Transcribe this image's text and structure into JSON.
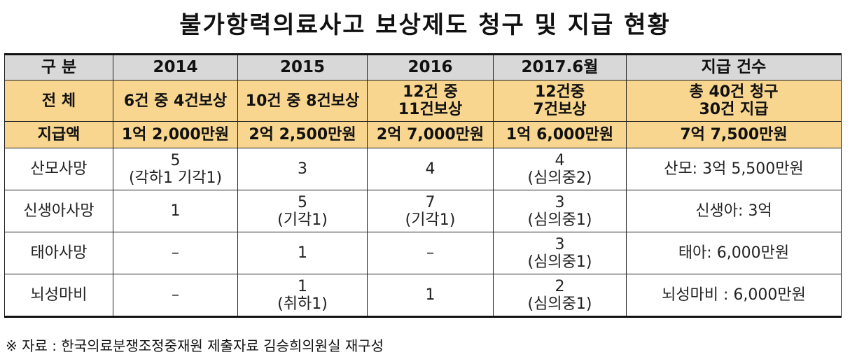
{
  "title": "불가항력의료사고 보상제도 청구 및 지급 현황",
  "header": [
    "구  분",
    "2014",
    "2015",
    "2016",
    "2017.6월",
    "지급 건수"
  ],
  "rows": [
    {
      "label": "전  체",
      "cells": [
        [
          "6건 중 4건보상"
        ],
        [
          "10건 중 8건보상"
        ],
        [
          "12건 중",
          "11건보상"
        ],
        [
          "12건중",
          "7건보상"
        ],
        [
          "총 40건 청구",
          "30건 지급"
        ]
      ]
    },
    {
      "label": "지급액",
      "cells": [
        [
          "1억 2,000만원"
        ],
        [
          "2억 2,500만원"
        ],
        [
          "2억 7,000만원"
        ],
        [
          "1억 6,000만원"
        ],
        [
          "7억 7,500만원"
        ]
      ]
    },
    {
      "label": "산모사망",
      "cells": [
        [
          "5",
          "(각하1 기각1)"
        ],
        [
          "3"
        ],
        [
          "4"
        ],
        [
          "4",
          "(심의중2)"
        ],
        [
          "산모: 3억 5,500만원"
        ]
      ]
    },
    {
      "label": "신생아사망",
      "cells": [
        [
          "1"
        ],
        [
          "5",
          "(기각1)"
        ],
        [
          "7",
          "(기각1)"
        ],
        [
          "3",
          "(심의중1)"
        ],
        [
          "신생아: 3억"
        ]
      ]
    },
    {
      "label": "태아사망",
      "cells": [
        [
          "–"
        ],
        [
          "1"
        ],
        [
          "–"
        ],
        [
          "3",
          "(심의중1)"
        ],
        [
          "태아: 6,000만원"
        ]
      ]
    },
    {
      "label": "뇌성마비",
      "cells": [
        [
          "–"
        ],
        [
          "1",
          "(취하1)"
        ],
        [
          "1"
        ],
        [
          "2",
          "(심의중1)"
        ],
        [
          "뇌성마비 : 6,000만원"
        ]
      ]
    }
  ],
  "note": "※ 자료 : 한국의료분쟁조정중재원 제출자료 김승희의원실 재구성"
}
